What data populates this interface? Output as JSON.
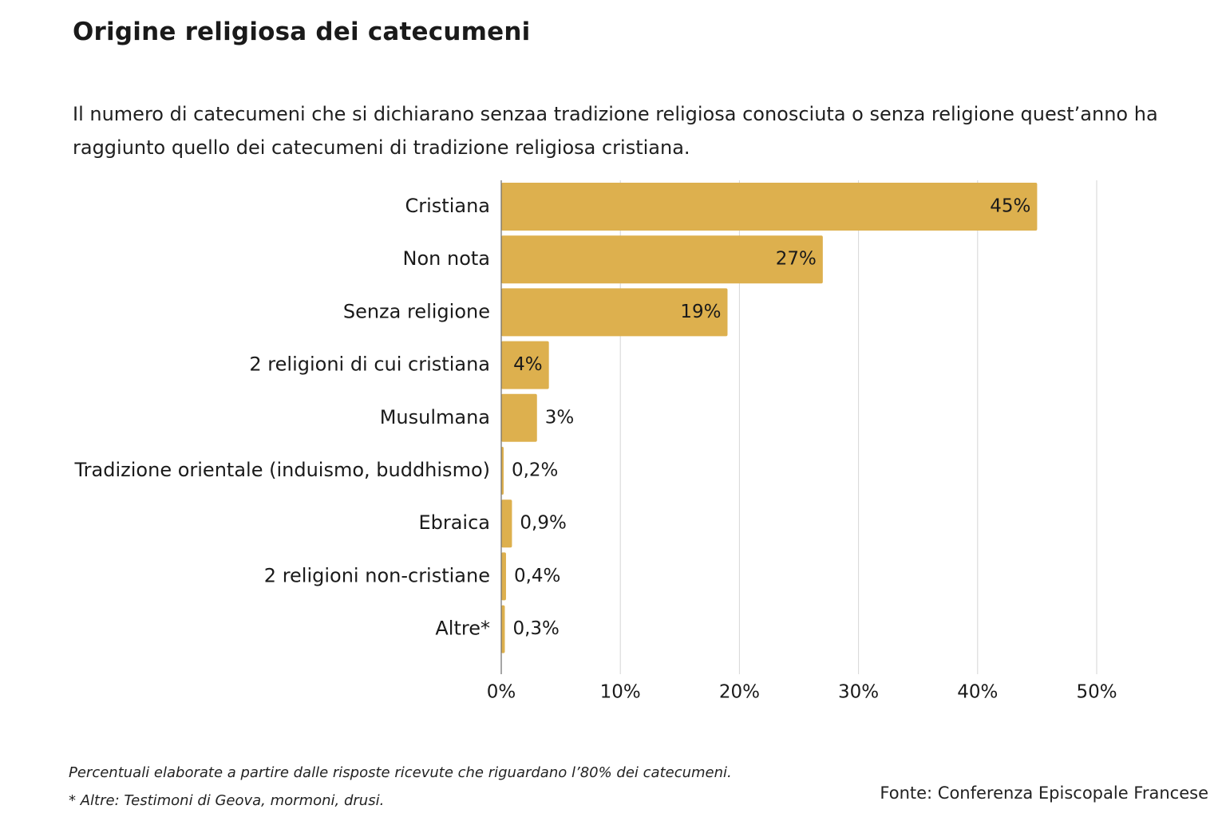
{
  "chart_data": {
    "type": "bar",
    "orientation": "horizontal",
    "title": "Origine religiosa dei catecumeni",
    "subtitle": "Il numero di catecumeni che si dichiarano senzaa tradizione religiosa conosciuta o senza religione quest’anno  ha raggiunto quello dei catecumeni di tradizione religiosa cristiana.",
    "categories": [
      "Cristiana",
      "Non nota",
      "Senza religione",
      "2 religioni di cui cristiana",
      "Musulmana",
      "Tradizione orientale (induismo, buddhismo)",
      "Ebraica",
      "2 religioni non-cristiane",
      "Altre*"
    ],
    "values": [
      45,
      27,
      19,
      4,
      3,
      0.2,
      0.9,
      0.4,
      0.3
    ],
    "value_labels": [
      "45%",
      "27%",
      "19%",
      "4%",
      "3%",
      "0,2%",
      "0,9%",
      "0,4%",
      "0,3%"
    ],
    "xlim": [
      0,
      50
    ],
    "xticks": [
      0,
      10,
      20,
      30,
      40,
      50
    ],
    "xtick_labels": [
      "0%",
      "10%",
      "20%",
      "30%",
      "40%",
      "50%"
    ],
    "xlabel": "",
    "ylabel": "",
    "grid": true,
    "bar_color": "#DDB04E",
    "grid_color": "#d6d6d6",
    "axis_color": "#6b6b6b"
  },
  "footnotes": {
    "note1": "Percentuali elaborate a partire dalle risposte ricevute che riguardano l’80% dei catecumeni.",
    "note2": "* Altre:  Testimoni di Geova, mormoni, drusi.",
    "source": "Fonte: Conferenza Episcopale Francese"
  }
}
